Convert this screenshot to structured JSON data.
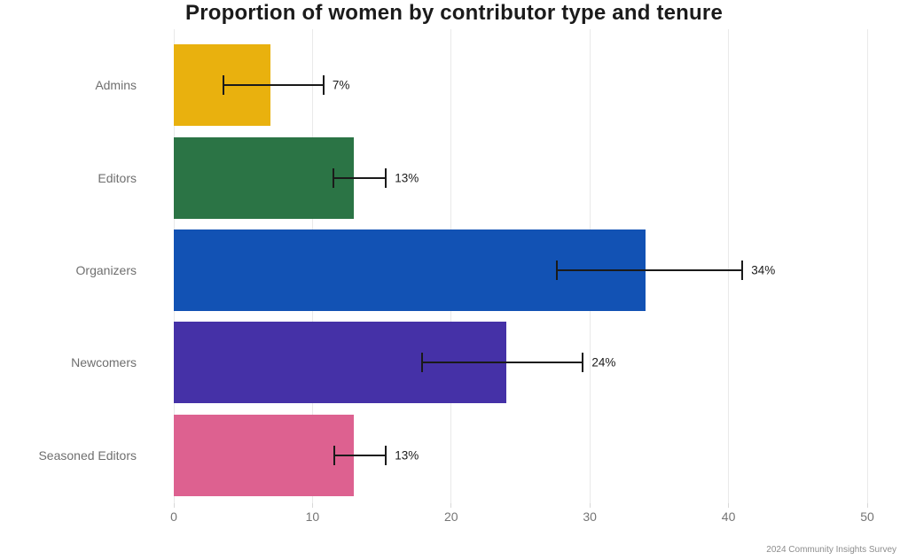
{
  "chart_data": {
    "type": "bar",
    "orientation": "horizontal",
    "title": "Proportion of women by contributor type and tenure",
    "source": "2024 Community Insights Survey",
    "categories": [
      "Admins",
      "Editors",
      "Organizers",
      "Newcomers",
      "Seasoned Editors"
    ],
    "values": [
      7,
      13,
      34,
      24,
      13
    ],
    "value_labels": [
      "7%",
      "13%",
      "34%",
      "24%",
      "13%"
    ],
    "error_low": [
      3.6,
      11.5,
      27.6,
      17.9,
      11.6
    ],
    "error_high": [
      10.8,
      15.3,
      41.0,
      29.5,
      15.3
    ],
    "bar_colors": [
      "#E9B10E",
      "#2B7445",
      "#1252B4",
      "#4531A7",
      "#DD6190"
    ],
    "x_ticks": [
      0,
      10,
      20,
      30,
      40,
      50
    ],
    "xlim": [
      0,
      50
    ],
    "grid": true,
    "legend_position": "none",
    "grid_color": "#e9e9e9",
    "category_label_color": "#6f6f6f",
    "tick_label_color": "#757575",
    "error_bar_color": "#1a1a1a",
    "title_color": "#1b1b1b"
  }
}
